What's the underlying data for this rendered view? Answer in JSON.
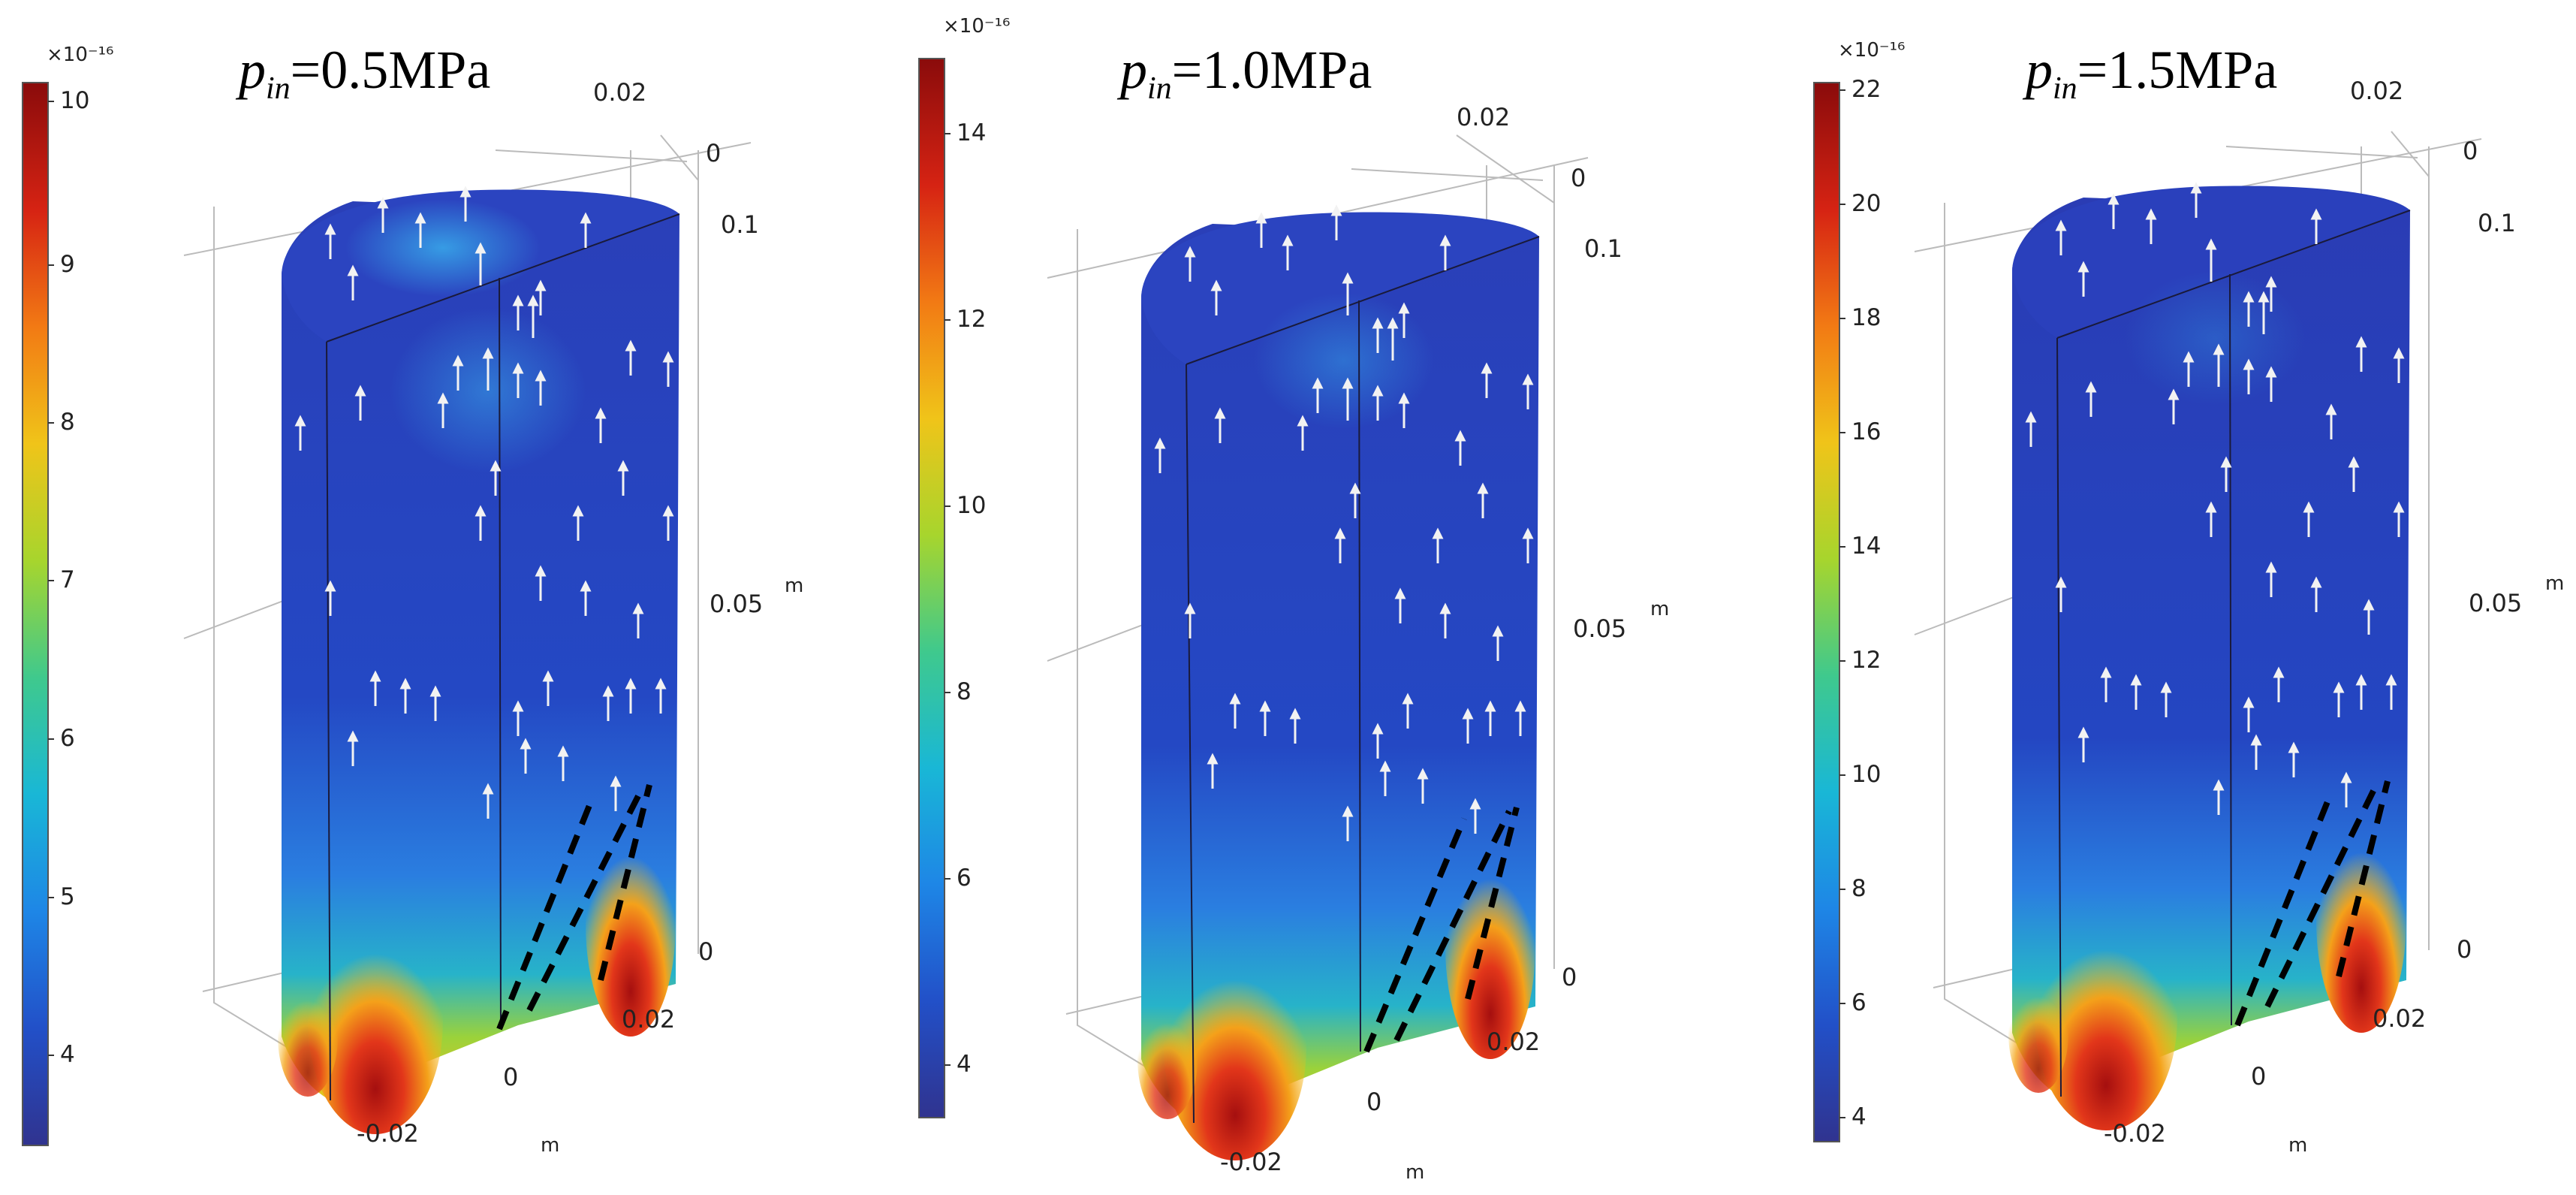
{
  "colormap": [
    "#30338f",
    "#2250c8",
    "#1e86e6",
    "#19b7d6",
    "#3fc98d",
    "#a7d52d",
    "#f0c419",
    "#f27a14",
    "#d62313",
    "#8a0b0b"
  ],
  "arrow_color": "#f2f2f2",
  "panels": [
    {
      "title_p": "p",
      "title_sub": "in",
      "title_value": "=0.5MPa",
      "colorbar_unit": "×10⁻¹⁶",
      "colorbar_range": [
        3.4,
        10.4
      ],
      "colorbar_ticks": [
        "10",
        "9",
        "8",
        "7",
        "6",
        "5",
        "4"
      ],
      "axis_labels": {
        "y_top_0": "0",
        "y_top_002": "0.02",
        "z_01": "0.1",
        "z_005": "0.05",
        "z_0": "0",
        "z_unit": "m",
        "x_002": "0.02",
        "x_0": "0",
        "x_m002": "-0.02",
        "x_unit": "m"
      }
    },
    {
      "title_p": "p",
      "title_sub": "in",
      "title_value": "=1.0MPa",
      "colorbar_unit": "×10⁻¹⁶",
      "colorbar_range": [
        3.4,
        15
      ],
      "colorbar_ticks": [
        "14",
        "12",
        "10",
        "8",
        "6",
        "4"
      ],
      "axis_labels": {
        "y_top_0": "0",
        "y_top_002": "0.02",
        "z_01": "0.1",
        "z_005": "0.05",
        "z_0": "0",
        "z_unit": "m",
        "x_002": "0.02",
        "x_0": "0",
        "x_m002": "-0.02",
        "x_unit": "m"
      }
    },
    {
      "title_p": "p",
      "title_sub": "in",
      "title_value": "=1.5MPa",
      "colorbar_unit": "×10⁻¹⁶",
      "colorbar_range": [
        3.4,
        22
      ],
      "colorbar_ticks": [
        "22",
        "20",
        "18",
        "16",
        "14",
        "12",
        "10",
        "8",
        "6",
        "4"
      ],
      "axis_labels": {
        "y_top_0": "0",
        "y_top_002": "0.02",
        "z_01": "0.1",
        "z_005": "0.05",
        "z_0": "0",
        "z_unit": "m",
        "x_002": "0.02",
        "x_0": "0",
        "x_m002": "-0.02",
        "x_unit": "m"
      }
    }
  ]
}
